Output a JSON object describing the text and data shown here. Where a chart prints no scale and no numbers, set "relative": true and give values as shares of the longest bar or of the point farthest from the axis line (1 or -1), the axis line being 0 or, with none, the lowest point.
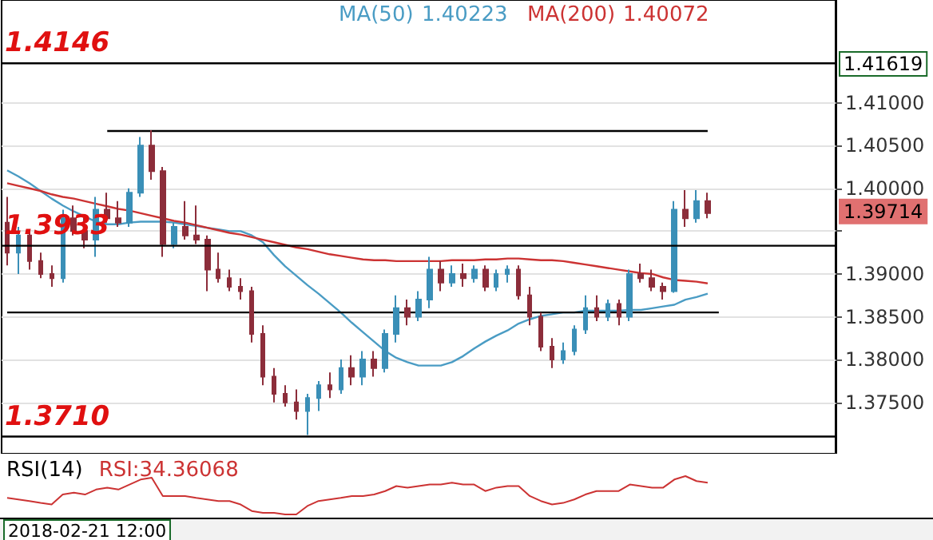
{
  "chart_data": [
    {
      "type": "candlestick",
      "categories": [
        null,
        null,
        null,
        null,
        null,
        null,
        null,
        null,
        null,
        null,
        null,
        null,
        null,
        null,
        null,
        null,
        null,
        null,
        null,
        null,
        null,
        null,
        null,
        null,
        null,
        null,
        null,
        null,
        null,
        null,
        null,
        null,
        null,
        null,
        null,
        null,
        null,
        null,
        null,
        null,
        null,
        null,
        null,
        null,
        null,
        null,
        null,
        null,
        null,
        null,
        null,
        null,
        null,
        null,
        null,
        null,
        null,
        null,
        null,
        null,
        null,
        null,
        null,
        null,
        null,
        null,
        null,
        null,
        null,
        null,
        null,
        null,
        null,
        null,
        null
      ],
      "ylim": [
        1.369,
        1.422
      ],
      "yticks": [
        {
          "value": 1.375,
          "label": "1.37500"
        },
        {
          "value": 1.38,
          "label": "1.38000"
        },
        {
          "value": 1.385,
          "label": "1.38500"
        },
        {
          "value": 1.39,
          "label": "1.39000"
        },
        {
          "value": 1.395,
          "label": null
        },
        {
          "value": 1.4,
          "label": "1.40000"
        },
        {
          "value": 1.405,
          "label": "1.40500"
        },
        {
          "value": 1.41,
          "label": "1.41000"
        }
      ],
      "tick_labels": "y",
      "grid": "y",
      "legend": "top",
      "series": [
        {
          "type": "candlestick",
          "ohlc": [
            [
              1.396,
              1.399,
              1.391,
              1.3925
            ],
            [
              1.3925,
              1.3955,
              1.39,
              1.3945
            ],
            [
              1.3945,
              1.395,
              1.3905,
              1.3915
            ],
            [
              1.3915,
              1.3925,
              1.3895,
              1.39
            ],
            [
              1.39,
              1.391,
              1.3885,
              1.3895
            ],
            [
              1.3895,
              1.3975,
              1.389,
              1.3965
            ],
            [
              1.3965,
              1.398,
              1.3945,
              1.395
            ],
            [
              1.395,
              1.397,
              1.393,
              1.394
            ],
            [
              1.394,
              1.399,
              1.392,
              1.3975
            ],
            [
              1.3975,
              1.3995,
              1.396,
              1.3965
            ],
            [
              1.3965,
              1.3985,
              1.3955,
              1.396
            ],
            [
              1.396,
              1.4,
              1.3955,
              1.3995
            ],
            [
              1.3995,
              1.406,
              1.399,
              1.405
            ],
            [
              1.405,
              1.4068,
              1.401,
              1.402
            ],
            [
              1.402,
              1.4025,
              1.392,
              1.3935
            ],
            [
              1.3935,
              1.396,
              1.393,
              1.3955
            ],
            [
              1.3955,
              1.3985,
              1.394,
              1.3945
            ],
            [
              1.3945,
              1.398,
              1.3935,
              1.394
            ],
            [
              1.394,
              1.3945,
              1.388,
              1.3905
            ],
            [
              1.3905,
              1.3925,
              1.389,
              1.3895
            ],
            [
              1.3895,
              1.3905,
              1.388,
              1.3885
            ],
            [
              1.3885,
              1.3895,
              1.387,
              1.388
            ],
            [
              1.388,
              1.3885,
              1.382,
              1.383
            ],
            [
              1.383,
              1.384,
              1.377,
              1.378
            ],
            [
              1.378,
              1.379,
              1.375,
              1.376
            ],
            [
              1.376,
              1.377,
              1.3745,
              1.375
            ],
            [
              1.375,
              1.3765,
              1.373,
              1.374
            ],
            [
              1.374,
              1.376,
              1.3712,
              1.3755
            ],
            [
              1.3755,
              1.3775,
              1.374,
              1.377
            ],
            [
              1.377,
              1.3785,
              1.3755,
              1.3765
            ],
            [
              1.3765,
              1.38,
              1.376,
              1.379
            ],
            [
              1.379,
              1.3805,
              1.377,
              1.378
            ],
            [
              1.378,
              1.381,
              1.377,
              1.38
            ],
            [
              1.38,
              1.381,
              1.378,
              1.379
            ],
            [
              1.379,
              1.3835,
              1.3785,
              1.383
            ],
            [
              1.383,
              1.3875,
              1.382,
              1.386
            ],
            [
              1.386,
              1.387,
              1.384,
              1.385
            ],
            [
              1.385,
              1.388,
              1.3845,
              1.387
            ],
            [
              1.387,
              1.392,
              1.386,
              1.3905
            ],
            [
              1.3905,
              1.3915,
              1.388,
              1.389
            ],
            [
              1.389,
              1.391,
              1.3885,
              1.39
            ],
            [
              1.39,
              1.3912,
              1.3885,
              1.3895
            ],
            [
              1.3895,
              1.391,
              1.389,
              1.3905
            ],
            [
              1.3905,
              1.391,
              1.388,
              1.3885
            ],
            [
              1.3885,
              1.3905,
              1.388,
              1.39
            ],
            [
              1.39,
              1.391,
              1.389,
              1.3905
            ],
            [
              1.3905,
              1.391,
              1.387,
              1.3875
            ],
            [
              1.3875,
              1.3885,
              1.384,
              1.385
            ],
            [
              1.385,
              1.3855,
              1.381,
              1.3815
            ],
            [
              1.3815,
              1.3825,
              1.379,
              1.38
            ],
            [
              1.38,
              1.382,
              1.3795,
              1.381
            ],
            [
              1.381,
              1.384,
              1.3805,
              1.3835
            ],
            [
              1.3835,
              1.3875,
              1.383,
              1.386
            ],
            [
              1.386,
              1.3875,
              1.3845,
              1.385
            ],
            [
              1.385,
              1.387,
              1.3845,
              1.3865
            ],
            [
              1.3865,
              1.387,
              1.384,
              1.385
            ],
            [
              1.385,
              1.3905,
              1.3845,
              1.39
            ],
            [
              1.39,
              1.3912,
              1.389,
              1.3895
            ],
            [
              1.3895,
              1.3905,
              1.388,
              1.3885
            ],
            [
              1.3885,
              1.389,
              1.387,
              1.388
            ],
            [
              1.388,
              1.3985,
              1.3878,
              1.3975
            ],
            [
              1.3975,
              1.3998,
              1.3955,
              1.3965
            ],
            [
              1.3965,
              1.3998,
              1.396,
              1.3985
            ],
            [
              1.3985,
              1.3995,
              1.3965,
              1.3971
            ],
            null,
            null,
            null,
            null,
            null,
            null,
            null,
            null,
            null,
            null,
            null
          ],
          "colors": [
            "#8c2d3a",
            "#3a8fb7",
            "#8c2d3a",
            "#8c2d3a",
            "#8c2d3a",
            "#3a8fb7",
            "#8c2d3a",
            "#8c2d3a",
            "#3a8fb7",
            "#8c2d3a",
            "#8c2d3a",
            "#3a8fb7",
            "#3a8fb7",
            "#8c2d3a",
            "#8c2d3a",
            "#3a8fb7",
            "#8c2d3a",
            "#8c2d3a",
            "#8c2d3a",
            "#8c2d3a",
            "#8c2d3a",
            "#8c2d3a",
            "#8c2d3a",
            "#8c2d3a",
            "#8c2d3a",
            "#8c2d3a",
            "#8c2d3a",
            "#3a8fb7",
            "#3a8fb7",
            "#8c2d3a",
            "#3a8fb7",
            "#8c2d3a",
            "#3a8fb7",
            "#8c2d3a",
            "#3a8fb7",
            "#3a8fb7",
            "#8c2d3a",
            "#3a8fb7",
            "#3a8fb7",
            "#8c2d3a",
            "#3a8fb7",
            "#8c2d3a",
            "#3a8fb7",
            "#8c2d3a",
            "#3a8fb7",
            "#3a8fb7",
            "#8c2d3a",
            "#8c2d3a",
            "#8c2d3a",
            "#8c2d3a",
            "#3a8fb7",
            "#3a8fb7",
            "#3a8fb7",
            "#8c2d3a",
            "#3a8fb7",
            "#8c2d3a",
            "#3a8fb7",
            "#8c2d3a",
            "#8c2d3a",
            "#8c2d3a",
            "#3a8fb7",
            "#8c2d3a",
            "#3a8fb7",
            "#8c2d3a",
            null,
            null,
            null,
            null,
            null,
            null,
            null,
            null,
            null,
            null,
            null
          ]
        },
        {
          "type": "line",
          "name": "MA(50)",
          "color": "#4a9cc4",
          "values": [
            1.4021,
            1.4014,
            1.4006,
            1.3997,
            1.3988,
            1.398,
            1.3973,
            1.3967,
            1.3961,
            1.3958,
            1.3958,
            1.396,
            1.3961,
            1.3961,
            1.3961,
            1.396,
            1.3958,
            1.3956,
            1.3954,
            1.3952,
            1.395,
            1.395,
            1.3945,
            1.3937,
            1.3922,
            1.3909,
            1.3898,
            1.3887,
            1.3877,
            1.3866,
            1.3855,
            1.3843,
            1.3832,
            1.3821,
            1.381,
            1.3802,
            1.3797,
            1.3793,
            1.3793,
            1.3793,
            1.3797,
            1.3804,
            1.3813,
            1.3821,
            1.3828,
            1.3834,
            1.3842,
            1.3847,
            1.3851,
            1.3853,
            1.3855,
            1.3855,
            1.3857,
            1.3857,
            1.3857,
            1.3857,
            1.3858,
            1.3858,
            1.386,
            1.3862,
            1.3864,
            1.387,
            1.3873,
            1.3877,
            null,
            null,
            null,
            null,
            null,
            null,
            null,
            null,
            null,
            null,
            null
          ]
        },
        {
          "type": "line",
          "name": "MA(200)",
          "color": "#cc3333",
          "values": [
            1.4006,
            1.4003,
            1.4,
            1.3997,
            1.3993,
            1.399,
            1.3988,
            1.3985,
            1.3982,
            1.3979,
            1.3976,
            1.3974,
            1.3971,
            1.3968,
            1.3965,
            1.3962,
            1.396,
            1.3957,
            1.3954,
            1.3951,
            1.3948,
            1.3946,
            1.3943,
            1.394,
            1.3937,
            1.3934,
            1.3931,
            1.3929,
            1.3926,
            1.3923,
            1.3921,
            1.3919,
            1.3917,
            1.3916,
            1.3916,
            1.3915,
            1.3915,
            1.3915,
            1.3915,
            1.3915,
            1.3916,
            1.3916,
            1.3916,
            1.3917,
            1.3917,
            1.3918,
            1.3918,
            1.3917,
            1.3916,
            1.3916,
            1.3915,
            1.3913,
            1.3911,
            1.3909,
            1.3907,
            1.3905,
            1.3903,
            1.3901,
            1.39,
            1.3896,
            1.3893,
            1.3892,
            1.3891,
            1.3889,
            null,
            null,
            null,
            null,
            null,
            null,
            null,
            null,
            null,
            null,
            null
          ]
        },
        {
          "type": "line",
          "color": "#000000",
          "values": [
            null,
            null,
            null,
            null,
            null,
            null,
            null,
            null,
            null,
            1.4067,
            1.4067,
            1.4067,
            1.4067,
            1.4067,
            1.4067,
            1.4067,
            1.4067,
            1.4067,
            1.4067,
            1.4067,
            1.4067,
            1.4067,
            1.4067,
            1.4067,
            1.4067,
            1.4067,
            1.4067,
            1.4067,
            1.4067,
            1.4067,
            1.4067,
            1.4067,
            1.4067,
            1.4067,
            1.4067,
            1.4067,
            1.4067,
            1.4067,
            1.4067,
            1.4067,
            1.4067,
            1.4067,
            1.4067,
            1.4067,
            1.4067,
            1.4067,
            1.4067,
            1.4067,
            1.4067,
            1.4067,
            1.4067,
            1.4067,
            1.4067,
            1.4067,
            1.4067,
            1.4067,
            1.4067,
            1.4067,
            1.4067,
            1.4067,
            1.4067,
            1.4067,
            1.4067,
            1.4067,
            null,
            null,
            null,
            null,
            null,
            null,
            null,
            null,
            null,
            null,
            null
          ]
        },
        {
          "type": "line",
          "color": "#000000",
          "values": [
            1.3855,
            1.3855,
            1.3855,
            1.3855,
            1.3855,
            1.3855,
            1.3855,
            1.3855,
            1.3855,
            1.3855,
            1.3855,
            1.3855,
            1.3855,
            1.3855,
            1.3855,
            1.3855,
            1.3855,
            1.3855,
            1.3855,
            1.3855,
            1.3855,
            1.3855,
            1.3855,
            1.3855,
            1.3855,
            1.3855,
            1.3855,
            1.3855,
            1.3855,
            1.3855,
            1.3855,
            1.3855,
            1.3855,
            1.3855,
            1.3855,
            1.3855,
            1.3855,
            1.3855,
            1.3855,
            1.3855,
            1.3855,
            1.3855,
            1.3855,
            1.3855,
            1.3855,
            1.3855,
            1.3855,
            1.3855,
            1.3855,
            1.3855,
            1.3855,
            1.3855,
            1.3855,
            1.3855,
            1.3855,
            1.3855,
            1.3855,
            1.3855,
            1.3855,
            1.3855,
            1.3855,
            1.3855,
            1.3855,
            1.3855,
            1.3855,
            null,
            null,
            null,
            null,
            null,
            null,
            null,
            null,
            null,
            null
          ]
        }
      ],
      "ref_lines": [
        {
          "axis": "y",
          "value": 1.4146,
          "label": "1.4146",
          "color": "#000000"
        },
        {
          "axis": "y",
          "value": 1.3933,
          "label": "1.3933",
          "color": "#000000"
        },
        {
          "axis": "y",
          "value": 1.371,
          "label": "1.3710",
          "color": "#000000"
        }
      ],
      "annotations": [
        "1.40223",
        "1.40072",
        "1.41619",
        "1.39714"
      ]
    },
    {
      "type": "line",
      "title": "RSI(14)",
      "relative": true,
      "tick_labels": false,
      "categories": [
        null,
        null,
        null,
        null,
        null,
        null,
        null,
        null,
        null,
        null,
        null,
        null,
        null,
        null,
        null,
        null,
        null,
        null,
        null,
        null,
        null,
        null,
        null,
        null,
        null,
        null,
        null,
        null,
        null,
        null,
        null,
        null,
        null,
        null,
        null,
        null,
        null,
        null,
        null,
        null,
        null,
        null,
        null,
        null,
        null,
        null,
        null,
        null,
        null,
        null,
        null,
        null,
        null,
        null,
        null,
        null,
        null,
        null,
        null,
        null,
        null,
        null,
        null,
        null,
        null,
        null,
        null,
        null,
        null,
        null,
        null,
        null,
        null,
        null,
        null
      ],
      "series": [
        {
          "color": "#cc3333",
          "values": [
            0.43,
            0.39,
            0.35,
            0.3,
            0.26,
            0.52,
            0.57,
            0.52,
            0.65,
            0.7,
            0.65,
            0.78,
            0.91,
            0.96,
            0.48,
            0.48,
            0.48,
            0.43,
            0.39,
            0.35,
            0.35,
            0.26,
            0.09,
            0.04,
            0.04,
            0,
            0,
            0.22,
            0.35,
            0.39,
            0.43,
            0.48,
            0.48,
            0.52,
            0.61,
            0.74,
            0.7,
            0.74,
            0.78,
            0.78,
            0.83,
            0.78,
            0.78,
            0.61,
            0.7,
            0.74,
            0.74,
            0.48,
            0.35,
            0.26,
            0.3,
            0.39,
            0.52,
            0.61,
            0.61,
            0.61,
            0.78,
            0.74,
            0.7,
            0.7,
            0.91,
            1,
            0.87,
            0.83,
            null,
            null,
            null,
            null,
            null,
            null,
            null,
            null,
            null,
            null,
            null
          ]
        }
      ],
      "annotations": [
        "RSI:34.36068",
        "2018-02-21 12:00"
      ]
    }
  ]
}
